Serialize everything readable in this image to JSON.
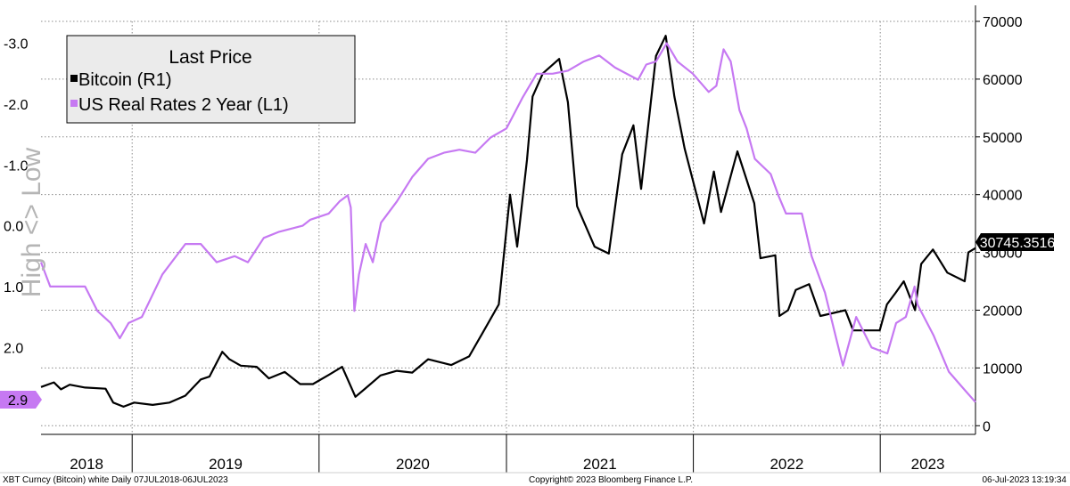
{
  "chart_data": {
    "type": "line",
    "title": "Last Price",
    "y_left_label": "High <> Low",
    "left_axis": {
      "ticks": [
        "-3.0",
        "-2.0",
        "-1.0",
        "0.0",
        "1.0",
        "2.0"
      ],
      "range": [
        -3.36,
        3.43
      ],
      "inverted": true
    },
    "right_axis": {
      "ticks": [
        "70000",
        "60000",
        "50000",
        "40000",
        "30000",
        "20000",
        "10000",
        "0"
      ],
      "range": [
        -1500,
        70000
      ]
    },
    "x_labels": [
      "2018",
      "2019",
      "2020",
      "2021",
      "2022",
      "2023"
    ],
    "x_range": [
      "2018-07-07",
      "2023-07-06"
    ],
    "grid": true,
    "legend_position": "top-left",
    "series": [
      {
        "name": "Bitcoin  (R1)",
        "axis": "right",
        "color": "#000000",
        "last_value_label": "30745.3516",
        "points": [
          [
            "2018-07-07",
            6700
          ],
          [
            "2018-08-01",
            7500
          ],
          [
            "2018-08-15",
            6300
          ],
          [
            "2018-09-01",
            7100
          ],
          [
            "2018-10-01",
            6600
          ],
          [
            "2018-11-10",
            6400
          ],
          [
            "2018-11-25",
            4000
          ],
          [
            "2018-12-15",
            3300
          ],
          [
            "2019-01-05",
            4000
          ],
          [
            "2019-02-10",
            3600
          ],
          [
            "2019-03-15",
            4000
          ],
          [
            "2019-04-15",
            5200
          ],
          [
            "2019-05-15",
            8000
          ],
          [
            "2019-06-01",
            8500
          ],
          [
            "2019-06-26",
            12800
          ],
          [
            "2019-07-10",
            11500
          ],
          [
            "2019-08-01",
            10400
          ],
          [
            "2019-09-01",
            10200
          ],
          [
            "2019-09-25",
            8200
          ],
          [
            "2019-10-26",
            9300
          ],
          [
            "2019-11-25",
            7200
          ],
          [
            "2019-12-20",
            7200
          ],
          [
            "2020-01-20",
            8800
          ],
          [
            "2020-02-15",
            10200
          ],
          [
            "2020-03-12",
            5000
          ],
          [
            "2020-04-01",
            6500
          ],
          [
            "2020-04-30",
            8700
          ],
          [
            "2020-06-01",
            9500
          ],
          [
            "2020-07-01",
            9200
          ],
          [
            "2020-08-01",
            11500
          ],
          [
            "2020-09-15",
            10500
          ],
          [
            "2020-10-20",
            12000
          ],
          [
            "2020-11-15",
            16000
          ],
          [
            "2020-12-17",
            21000
          ],
          [
            "2021-01-08",
            40000
          ],
          [
            "2021-01-22",
            31000
          ],
          [
            "2021-02-10",
            46000
          ],
          [
            "2021-02-21",
            57000
          ],
          [
            "2021-03-13",
            61000
          ],
          [
            "2021-04-14",
            63500
          ],
          [
            "2021-05-01",
            56000
          ],
          [
            "2021-05-19",
            38000
          ],
          [
            "2021-06-22",
            31000
          ],
          [
            "2021-07-20",
            29800
          ],
          [
            "2021-08-15",
            47000
          ],
          [
            "2021-09-06",
            52000
          ],
          [
            "2021-09-21",
            41000
          ],
          [
            "2021-10-20",
            64000
          ],
          [
            "2021-11-08",
            67500
          ],
          [
            "2021-11-25",
            57000
          ],
          [
            "2021-12-15",
            48000
          ],
          [
            "2022-01-22",
            35000
          ],
          [
            "2022-02-10",
            44000
          ],
          [
            "2022-02-24",
            37000
          ],
          [
            "2022-03-28",
            47500
          ],
          [
            "2022-04-30",
            38500
          ],
          [
            "2022-05-12",
            29000
          ],
          [
            "2022-06-10",
            29500
          ],
          [
            "2022-06-18",
            19000
          ],
          [
            "2022-07-05",
            20000
          ],
          [
            "2022-07-20",
            23500
          ],
          [
            "2022-08-15",
            24500
          ],
          [
            "2022-09-06",
            19000
          ],
          [
            "2022-10-25",
            20000
          ],
          [
            "2022-11-09",
            16500
          ],
          [
            "2022-12-31",
            16500
          ],
          [
            "2023-01-14",
            21000
          ],
          [
            "2023-01-31",
            23000
          ],
          [
            "2023-02-16",
            25000
          ],
          [
            "2023-03-10",
            20000
          ],
          [
            "2023-03-22",
            28000
          ],
          [
            "2023-04-14",
            30500
          ],
          [
            "2023-05-12",
            26500
          ],
          [
            "2023-06-15",
            25000
          ],
          [
            "2023-06-22",
            30000
          ],
          [
            "2023-07-06",
            30745
          ]
        ]
      },
      {
        "name": "US Real Rates 2 Year  (L1)",
        "axis": "left",
        "color": "#c679f2",
        "last_value_label": "2.9",
        "points": [
          [
            "2018-07-07",
            0.6
          ],
          [
            "2018-07-25",
            1.0
          ],
          [
            "2018-08-30",
            1.0
          ],
          [
            "2018-10-01",
            1.0
          ],
          [
            "2018-10-25",
            1.4
          ],
          [
            "2018-11-20",
            1.6
          ],
          [
            "2018-12-08",
            1.85
          ],
          [
            "2018-12-25",
            1.6
          ],
          [
            "2019-01-20",
            1.5
          ],
          [
            "2019-03-01",
            0.8
          ],
          [
            "2019-04-15",
            0.3
          ],
          [
            "2019-05-15",
            0.3
          ],
          [
            "2019-06-15",
            0.6
          ],
          [
            "2019-07-20",
            0.5
          ],
          [
            "2019-08-15",
            0.6
          ],
          [
            "2019-09-15",
            0.2
          ],
          [
            "2019-10-15",
            0.1
          ],
          [
            "2019-11-30",
            0.0
          ],
          [
            "2019-12-15",
            -0.1
          ],
          [
            "2020-01-20",
            -0.2
          ],
          [
            "2020-02-10",
            -0.4
          ],
          [
            "2020-02-26",
            -0.5
          ],
          [
            "2020-03-03",
            -0.3
          ],
          [
            "2020-03-10",
            1.4
          ],
          [
            "2020-03-19",
            0.8
          ],
          [
            "2020-04-01",
            0.3
          ],
          [
            "2020-04-15",
            0.6
          ],
          [
            "2020-05-01",
            -0.05
          ],
          [
            "2020-06-01",
            -0.4
          ],
          [
            "2020-07-01",
            -0.8
          ],
          [
            "2020-08-01",
            -1.1
          ],
          [
            "2020-09-01",
            -1.2
          ],
          [
            "2020-10-01",
            -1.25
          ],
          [
            "2020-11-01",
            -1.2
          ],
          [
            "2020-12-01",
            -1.45
          ],
          [
            "2021-01-01",
            -1.6
          ],
          [
            "2021-02-01",
            -2.1
          ],
          [
            "2021-03-01",
            -2.5
          ],
          [
            "2021-04-01",
            -2.5
          ],
          [
            "2021-05-01",
            -2.55
          ],
          [
            "2021-06-01",
            -2.7
          ],
          [
            "2021-07-01",
            -2.8
          ],
          [
            "2021-08-01",
            -2.6
          ],
          [
            "2021-09-15",
            -2.4
          ],
          [
            "2021-10-01",
            -2.65
          ],
          [
            "2021-10-20",
            -2.7
          ],
          [
            "2021-11-10",
            -3.0
          ],
          [
            "2021-12-01",
            -2.7
          ],
          [
            "2021-12-31",
            -2.5
          ],
          [
            "2022-01-31",
            -2.2
          ],
          [
            "2022-02-15",
            -2.3
          ],
          [
            "2022-03-01",
            -2.9
          ],
          [
            "2022-03-15",
            -2.7
          ],
          [
            "2022-04-01",
            -1.9
          ],
          [
            "2022-04-15",
            -1.6
          ],
          [
            "2022-05-01",
            -1.1
          ],
          [
            "2022-06-01",
            -0.85
          ],
          [
            "2022-06-16",
            -0.5
          ],
          [
            "2022-07-01",
            -0.2
          ],
          [
            "2022-08-01",
            -0.2
          ],
          [
            "2022-08-20",
            0.5
          ],
          [
            "2022-09-15",
            1.1
          ],
          [
            "2022-10-20",
            2.3
          ],
          [
            "2022-11-15",
            1.5
          ],
          [
            "2022-12-15",
            2.0
          ],
          [
            "2023-01-15",
            2.1
          ],
          [
            "2023-02-01",
            1.6
          ],
          [
            "2023-02-20",
            1.5
          ],
          [
            "2023-03-09",
            1.0
          ],
          [
            "2023-03-15",
            1.3
          ],
          [
            "2023-04-15",
            1.8
          ],
          [
            "2023-05-15",
            2.4
          ],
          [
            "2023-06-15",
            2.7
          ],
          [
            "2023-07-06",
            2.9
          ]
        ]
      }
    ]
  },
  "footer": {
    "left": "XBT Curncy (Bitcoin) white  Daily 07JUL2018-06JUL2023",
    "center": "Copyright© 2023 Bloomberg Finance L.P.",
    "right": "06-Jul-2023 13:19:34"
  },
  "colors": {
    "bitcoin": "#000000",
    "real_rates": "#c679f2",
    "grid": "#8c8c8c"
  }
}
